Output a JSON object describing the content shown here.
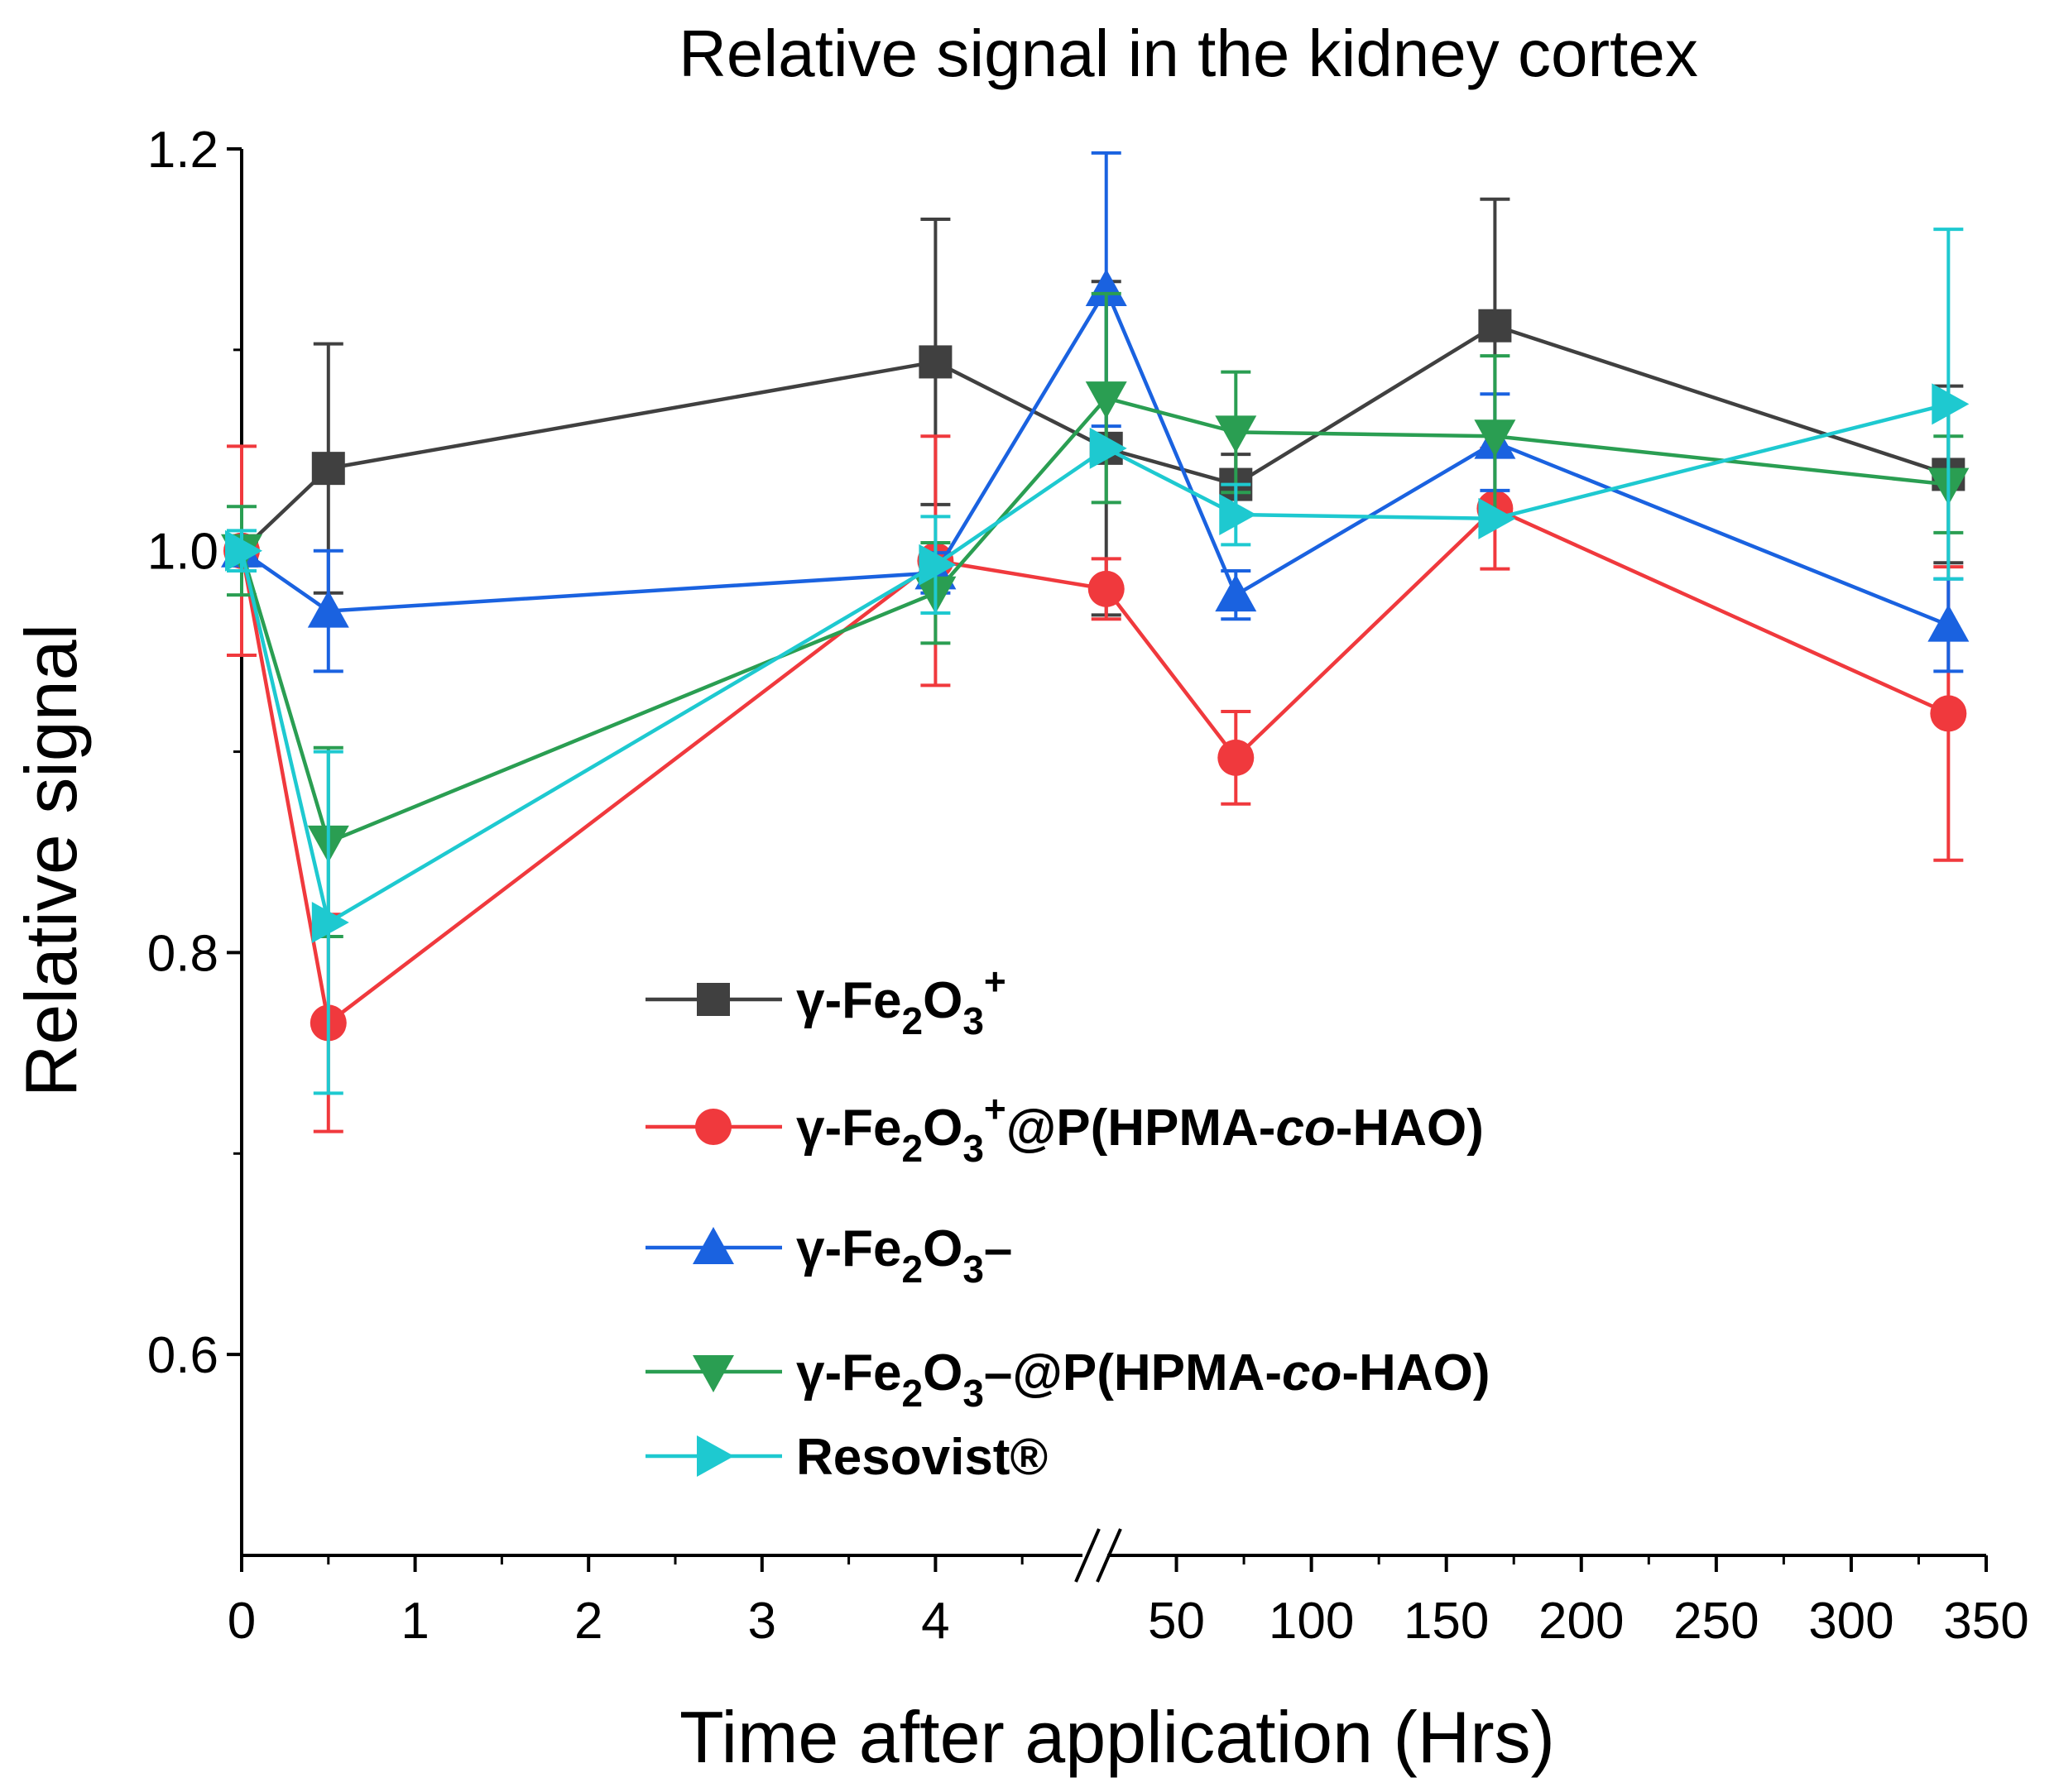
{
  "chart_data": {
    "type": "line",
    "title": "Relative signal in the kidney cortex",
    "xlabel": "Time after application (Hrs)",
    "ylabel": "Relative signal",
    "ylim": [
      0.5,
      1.2
    ],
    "yticks": [
      0.6,
      0.8,
      1.0,
      1.2
    ],
    "ytick_labels": [
      "0.6",
      "0.8",
      "1.0",
      "1.2"
    ],
    "x_axis": {
      "broken": true,
      "segment_1": {
        "range": [
          0,
          5
        ],
        "ticks": [
          0,
          1,
          2,
          3,
          4
        ],
        "labels": [
          "0",
          "1",
          "2",
          "3",
          "4"
        ]
      },
      "segment_2": {
        "range": [
          25,
          350
        ],
        "ticks": [
          50,
          100,
          150,
          200,
          250,
          300,
          350
        ],
        "labels": [
          "50",
          "100",
          "150",
          "200",
          "250",
          "300",
          "350"
        ]
      }
    },
    "x": [
      0,
      0.5,
      4,
      24,
      72,
      168,
      336
    ],
    "series": [
      {
        "name": "γ-Fe2O3+",
        "legend": {
          "base": "γ-Fe",
          "sub1": "2",
          "mid": "O",
          "sub2": "3",
          "sup": "+",
          "suffix": "",
          "italic": "",
          "tail": ""
        },
        "color": "#404040",
        "marker": "square",
        "values": [
          1.0,
          1.041,
          1.094,
          1.051,
          1.033,
          1.112,
          1.038
        ],
        "errors": [
          0.0,
          0.062,
          0.071,
          0.083,
          0.015,
          0.063,
          0.044
        ]
      },
      {
        "name": "γ-Fe2O3+@P(HPMA-co-HAO)",
        "legend": {
          "base": "γ-Fe",
          "sub1": "2",
          "mid": "O",
          "sub2": "3",
          "sup": "+",
          "suffix": "@P(HPMA-",
          "italic": "co",
          "tail": "-HAO)"
        },
        "color": "#f0393d",
        "marker": "circle",
        "values": [
          1.0,
          0.765,
          0.995,
          0.981,
          0.897,
          1.021,
          0.919
        ],
        "errors": [
          0.052,
          0.054,
          0.062,
          0.015,
          0.023,
          0.03,
          0.073
        ]
      },
      {
        "name": "γ-Fe2O3–",
        "legend": {
          "base": "γ-Fe",
          "sub1": "2",
          "mid": "O",
          "sub2": "3",
          "sup": "",
          "suffix": "–",
          "italic": "",
          "tail": ""
        },
        "color": "#1a62e0",
        "marker": "triangle-up",
        "values": [
          1.0,
          0.97,
          0.989,
          1.13,
          0.978,
          1.054,
          0.963
        ],
        "errors": [
          0.0,
          0.03,
          0.01,
          0.068,
          0.012,
          0.024,
          0.023
        ]
      },
      {
        "name": "γ-Fe2O3–@P(HPMA-co-HAO)",
        "legend": {
          "base": "γ-Fe",
          "sub1": "2",
          "mid": "O",
          "sub2": "3",
          "sup": "",
          "suffix": "–@P(HPMA-",
          "italic": "co",
          "tail": "-HAO)"
        },
        "color": "#2a9e52",
        "marker": "triangle-down",
        "values": [
          1.0,
          0.855,
          0.979,
          1.076,
          1.059,
          1.057,
          1.033
        ],
        "errors": [
          0.022,
          0.047,
          0.025,
          0.052,
          0.03,
          0.04,
          0.024
        ]
      },
      {
        "name": "Resovist®",
        "legend": {
          "base": "Resovist®",
          "sub1": "",
          "mid": "",
          "sub2": "",
          "sup": "",
          "suffix": "",
          "italic": "",
          "tail": ""
        },
        "color": "#1ec9d0",
        "marker": "triangle-right",
        "values": [
          1.0,
          0.815,
          0.993,
          1.051,
          1.018,
          1.016,
          1.073
        ],
        "errors": [
          0.01,
          0.085,
          0.024,
          0.0,
          0.015,
          0.0,
          0.087
        ]
      }
    ],
    "legend_position": "lower-center"
  }
}
